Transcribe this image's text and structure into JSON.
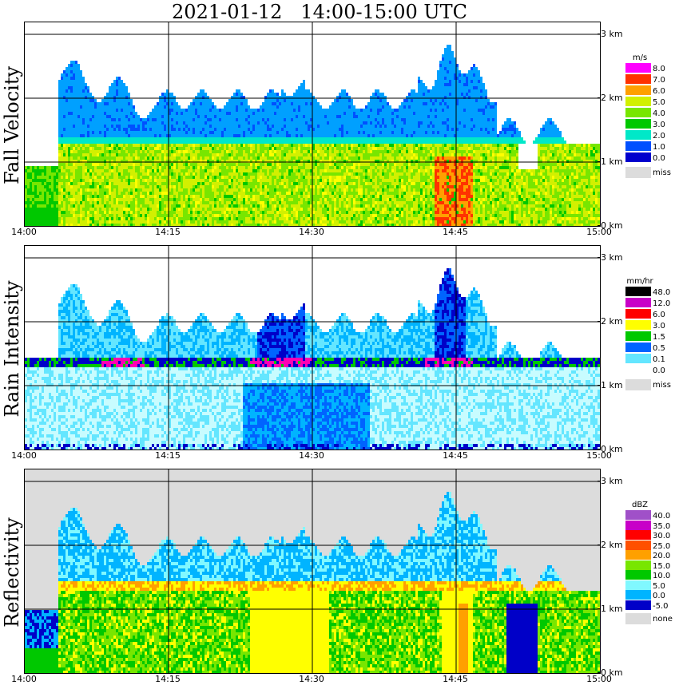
{
  "title": "2021-01-12   14:00-15:00 UTC",
  "x_ticks": [
    "14:00",
    "14:15",
    "14:30",
    "14:45",
    "15:00"
  ],
  "y_ticks": [
    "0 km",
    "1 km",
    "2 km",
    "3 km"
  ],
  "colors": {
    "velocity_scale": [
      "#0000cd",
      "#0050ff",
      "#00a0ff",
      "#00e8c8",
      "#00c800",
      "#78e600",
      "#d2f000",
      "#ffff00",
      "#ffa000",
      "#ff3200",
      "#ff00ff"
    ],
    "rain_scale": [
      "#ffffff",
      "#c8fcff",
      "#64e6ff",
      "#00b4ff",
      "#0064ff",
      "#0000c8",
      "#00c800",
      "#96e600",
      "#ffff00",
      "#ffa000",
      "#ff0000",
      "#ff00b4",
      "#c800c8",
      "#800080",
      "#000000"
    ],
    "refl_scale": [
      "#0000c8",
      "#00b4ff",
      "#80f8ff",
      "#00c800",
      "#78e600",
      "#ffff00",
      "#ffa000",
      "#ff5000",
      "#ff0000",
      "#c800c8",
      "#a050c8"
    ],
    "missing": "#dcdcdc"
  },
  "chart_data": [
    {
      "type": "heatmap",
      "ylabel": "Fall Velocity",
      "x": [
        "14:00",
        "14:15",
        "14:30",
        "14:45",
        "15:00"
      ],
      "ylim": [
        0,
        3.2
      ],
      "legend": {
        "unit": "m/s",
        "levels": [
          "8.0",
          "7.0",
          "6.0",
          "5.0",
          "4.0",
          "3.0",
          "2.0",
          "1.0",
          "0.0"
        ],
        "missing_label": "miss"
      }
    },
    {
      "type": "heatmap",
      "ylabel": "Rain Intensity",
      "x": [
        "14:00",
        "14:15",
        "14:30",
        "14:45",
        "15:00"
      ],
      "ylim": [
        0,
        3.2
      ],
      "legend": {
        "unit": "mm/hr",
        "levels": [
          "48.0",
          "12.0",
          "6.0",
          "3.0",
          "1.5",
          "0.5",
          "0.1",
          "0.0"
        ],
        "missing_label": "miss"
      }
    },
    {
      "type": "heatmap",
      "ylabel": "Reflectivity",
      "x": [
        "14:00",
        "14:15",
        "14:30",
        "14:45",
        "15:00"
      ],
      "ylim": [
        0,
        3.2
      ],
      "legend": {
        "unit": "dBZ",
        "levels": [
          "40.0",
          "35.0",
          "30.0",
          "25.0",
          "20.0",
          "15.0",
          "10.0",
          "5.0",
          "0.0",
          "-5.0"
        ],
        "missing_label": "none"
      }
    }
  ]
}
